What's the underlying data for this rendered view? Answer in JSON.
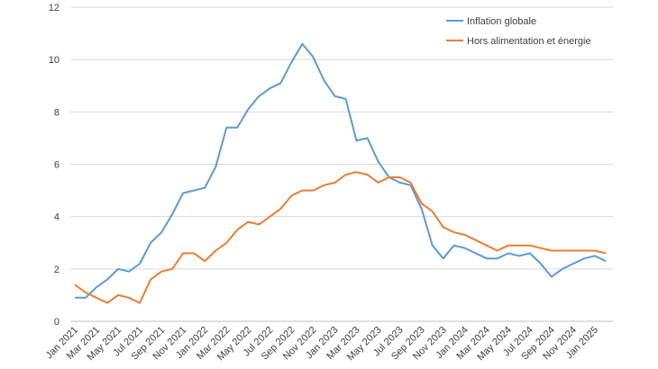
{
  "chart_data": {
    "type": "line",
    "title": "",
    "xlabel": "",
    "ylabel": "",
    "ylim": [
      0,
      12
    ],
    "yticks": [
      0,
      2,
      4,
      6,
      8,
      10,
      12
    ],
    "grid": "horizontal",
    "legend_position": "top-right",
    "x": [
      "Jan 2021",
      "Feb 2021",
      "Mar 2021",
      "Apr 2021",
      "May 2021",
      "Jun 2021",
      "Jul 2021",
      "Aug 2021",
      "Sep 2021",
      "Oct 2021",
      "Nov 2021",
      "Dec 2021",
      "Jan 2022",
      "Feb 2022",
      "Mar 2022",
      "Apr 2022",
      "May 2022",
      "Jun 2022",
      "Jul 2022",
      "Aug 2022",
      "Sep 2022",
      "Oct 2022",
      "Nov 2022",
      "Dec 2022",
      "Jan 2023",
      "Feb 2023",
      "Mar 2023",
      "Apr 2023",
      "May 2023",
      "Jun 2023",
      "Jul 2023",
      "Aug 2023",
      "Sep 2023",
      "Oct 2023",
      "Nov 2023",
      "Dec 2023",
      "Jan 2024",
      "Feb 2024",
      "Mar 2024",
      "Apr 2024",
      "May 2024",
      "Jun 2024",
      "Jul 2024",
      "Aug 2024",
      "Sep 2024",
      "Oct 2024",
      "Nov 2024",
      "Dec 2024",
      "Jan 2025",
      "Feb 2025"
    ],
    "xtick_labels": [
      "Jan 2021",
      "Mar 2021",
      "May 2021",
      "Jul 2021",
      "Sep 2021",
      "Nov 2021",
      "Jan 2022",
      "Mar 2022",
      "May 2022",
      "Jul 2022",
      "Sep 2022",
      "Nov 2022",
      "Jan 2023",
      "Mar 2023",
      "May 2023",
      "Jul 2023",
      "Sep 2023",
      "Nov 2023",
      "Jan 2024",
      "Mar 2024",
      "May 2024",
      "Jul 2024",
      "Sep 2024",
      "Nov 2024",
      "Jan 2025"
    ],
    "series": [
      {
        "name": "Inflation globale",
        "color": "#5B9BD5",
        "values": [
          0.9,
          0.9,
          1.3,
          1.6,
          2.0,
          1.9,
          2.2,
          3.0,
          3.4,
          4.1,
          4.9,
          5.0,
          5.1,
          5.9,
          7.4,
          7.4,
          8.1,
          8.6,
          8.9,
          9.1,
          9.9,
          10.6,
          10.1,
          9.2,
          8.6,
          8.5,
          6.9,
          7.0,
          6.1,
          5.5,
          5.3,
          5.2,
          4.3,
          2.9,
          2.4,
          2.9,
          2.8,
          2.6,
          2.4,
          2.4,
          2.6,
          2.5,
          2.6,
          2.2,
          1.7,
          2.0,
          2.2,
          2.4,
          2.5,
          2.3
        ]
      },
      {
        "name": "Hors alimentation et énergie",
        "color": "#ED7D31",
        "values": [
          1.4,
          1.1,
          0.9,
          0.7,
          1.0,
          0.9,
          0.7,
          1.6,
          1.9,
          2.0,
          2.6,
          2.6,
          2.3,
          2.7,
          3.0,
          3.5,
          3.8,
          3.7,
          4.0,
          4.3,
          4.8,
          5.0,
          5.0,
          5.2,
          5.3,
          5.6,
          5.7,
          5.6,
          5.3,
          5.5,
          5.5,
          5.3,
          4.5,
          4.2,
          3.6,
          3.4,
          3.3,
          3.1,
          2.9,
          2.7,
          2.9,
          2.9,
          2.9,
          2.8,
          2.7,
          2.7,
          2.7,
          2.7,
          2.7,
          2.6
        ]
      }
    ]
  }
}
